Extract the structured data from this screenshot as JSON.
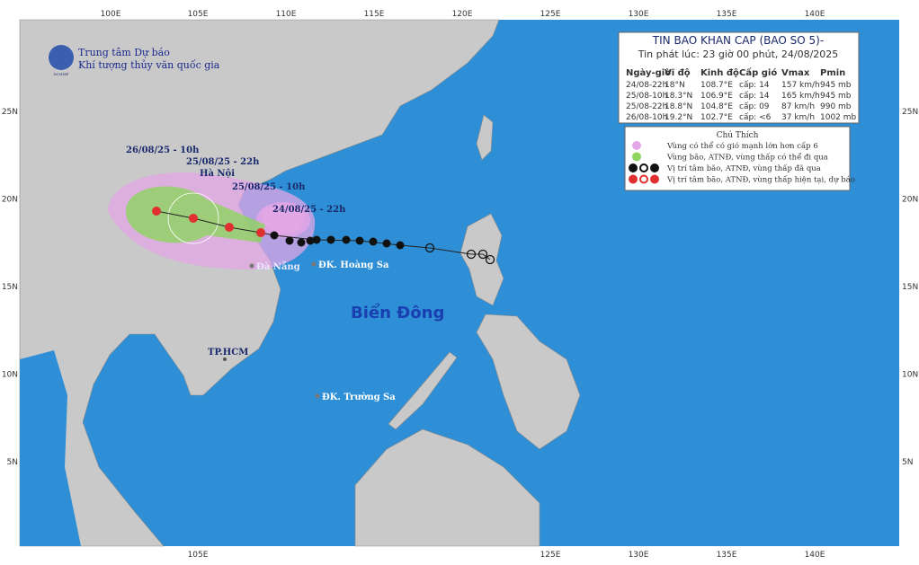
{
  "header": {
    "agency_line1": "Trung tâm Dự báo",
    "agency_line2": "Khí tượng thủy văn quốc gia",
    "logo_text": "NCHMF"
  },
  "bulletin": {
    "title": "TIN BAO KHAN CAP (BAO SO 5)-",
    "issued": "Tin phát lúc: 23 giờ 00 phút, 24/08/2025",
    "columns": [
      "Ngày-giờ",
      "Vĩ độ",
      "Kinh độ",
      "Cấp gió",
      "Vmax",
      "Pmin"
    ],
    "rows": [
      [
        "24/08-22h",
        "18°N",
        "108.7°E",
        "cấp: 14",
        "157 km/h",
        "945 mb"
      ],
      [
        "25/08-10h",
        "18.3°N",
        "106.9°E",
        "cấp: 14",
        "165 km/h",
        "945 mb"
      ],
      [
        "25/08-22h",
        "18.8°N",
        "104.8°E",
        "cấp: 09",
        "87 km/h",
        "990 mb"
      ],
      [
        "26/08-10h",
        "19.2°N",
        "102.7°E",
        "cấp: <6",
        "37 km/h",
        "1002 mb"
      ]
    ]
  },
  "legend": {
    "title": "Chú Thích",
    "items": [
      "Vùng có thể có gió mạnh lớn hơn cấp 6",
      "Vùng bão, ATNĐ, vùng thấp có thể đi qua",
      "Vị trí tâm bão, ATNĐ, vùng thấp đã qua",
      "Vị trí tâm bão, ATNĐ, vùng thấp hiện tại, dự báo"
    ]
  },
  "map_labels": {
    "fc4": "26/08/25 - 10h",
    "fc3": "25/08/25 - 22h",
    "hanoi": "Hà Nội",
    "fc2": "25/08/25 - 10h",
    "fc1": "24/08/25 - 22h",
    "danang": "Đà Nẵng",
    "hoangsa": "ĐK. Hoàng Sa",
    "sea": "Biển Đông",
    "hcm": "TP.HCM",
    "truongsa": "ĐK. Trường Sa"
  },
  "grid": {
    "top": [
      "100E",
      "105E",
      "110E",
      "115E",
      "120E",
      "125E",
      "130E",
      "135E",
      "140E"
    ],
    "bottom": [
      "105E",
      "125E",
      "130E",
      "135E",
      "140E"
    ],
    "lat": [
      "25N",
      "20N",
      "15N",
      "10N",
      "5N"
    ]
  }
}
